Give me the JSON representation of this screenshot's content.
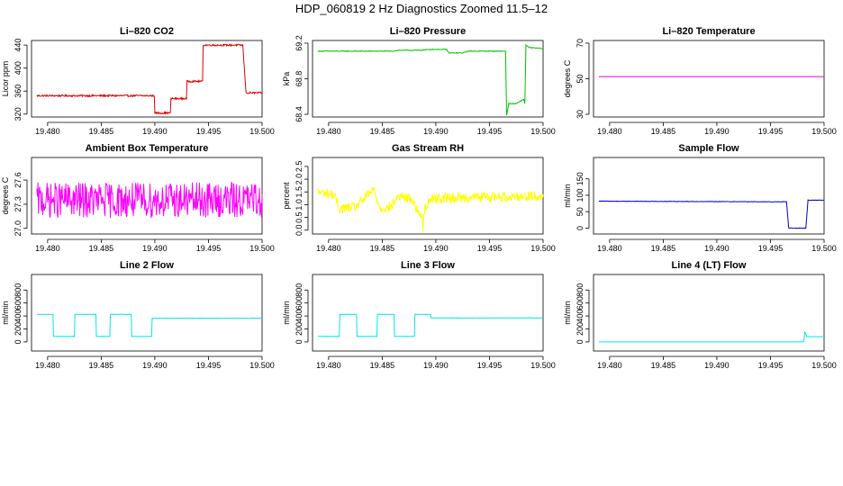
{
  "figure_title": "HDP_060819  2 Hz Diagnostics Zoomed 11.5–12",
  "chart_data": [
    {
      "type": "line",
      "title": "Li–820 CO2",
      "ylabel": "Licor ppm",
      "xlim": [
        19.4785,
        19.5
      ],
      "ylim": [
        315,
        448
      ],
      "xticks": [
        19.48,
        19.485,
        19.49,
        19.495,
        19.5
      ],
      "xtick_labels": [
        "19.480",
        "19.485",
        "19.490",
        "19.495",
        "19.500"
      ],
      "yticks": [
        320,
        360,
        400,
        440
      ],
      "ytick_labels": [
        "320",
        "360",
        "400",
        "440"
      ],
      "color": "#e00000",
      "noise": 1.5,
      "series": [
        {
          "x": [
            19.479,
            19.48999,
            19.49,
            19.49149,
            19.4915,
            19.49299,
            19.493,
            19.49449,
            19.4945,
            19.4965,
            19.49649,
            19.4982,
            19.4985,
            19.5
          ],
          "values": [
            352,
            352,
            322,
            322,
            347,
            347,
            377,
            377,
            440,
            440,
            440,
            440,
            357,
            357
          ]
        }
      ]
    },
    {
      "type": "line",
      "title": "Li–820 Pressure",
      "ylabel": "kPa",
      "xlim": [
        19.4785,
        19.5
      ],
      "ylim": [
        68.37,
        69.23
      ],
      "xticks": [
        19.48,
        19.485,
        19.49,
        19.495,
        19.5
      ],
      "xtick_labels": [
        "19.480",
        "19.485",
        "19.490",
        "19.495",
        "19.500"
      ],
      "yticks": [
        68.4,
        68.8,
        69.2
      ],
      "ytick_labels": [
        "68.4",
        "68.8",
        "69.2"
      ],
      "color": "#00c000",
      "noise": 0.004,
      "series": [
        {
          "x": [
            19.479,
            19.486,
            19.4865,
            19.4885,
            19.4895,
            19.491,
            19.4912,
            19.4925,
            19.493,
            19.4965,
            19.4966,
            19.4968,
            19.4972,
            19.4975,
            19.4982,
            19.4983,
            19.4984,
            19.4987,
            19.5
          ],
          "values": [
            69.11,
            69.11,
            69.12,
            69.12,
            69.13,
            69.13,
            69.09,
            69.09,
            69.11,
            69.11,
            68.39,
            68.52,
            68.52,
            68.52,
            68.57,
            68.52,
            69.18,
            69.15,
            69.14
          ]
        }
      ]
    },
    {
      "type": "line",
      "title": "Li–820 Temperature",
      "ylabel": "degrees C",
      "xlim": [
        19.4785,
        19.5
      ],
      "ylim": [
        28.5,
        71.5
      ],
      "xticks": [
        19.48,
        19.485,
        19.49,
        19.495,
        19.5
      ],
      "xtick_labels": [
        "19.480",
        "19.485",
        "19.490",
        "19.495",
        "19.500"
      ],
      "yticks": [
        30,
        50,
        70
      ],
      "ytick_labels": [
        "30",
        "50",
        "70"
      ],
      "color": "#e000e0",
      "noise": 0,
      "series": [
        {
          "x": [
            19.479,
            19.5
          ],
          "values": [
            51.2,
            51.2
          ]
        }
      ]
    },
    {
      "type": "line",
      "title": "Ambient Box Temperature",
      "ylabel": "degrees C",
      "xlim": [
        19.4785,
        19.5
      ],
      "ylim": [
        26.93,
        27.88
      ],
      "xticks": [
        19.48,
        19.485,
        19.49,
        19.495,
        19.5
      ],
      "xtick_labels": [
        "19.480",
        "19.485",
        "19.490",
        "19.495",
        "19.500"
      ],
      "yticks": [
        27.0,
        27.3,
        27.6
      ],
      "ytick_labels": [
        "27.0",
        "27.3",
        "27.6"
      ],
      "color": "#ff00ff",
      "noise": 0.22,
      "series": [
        {
          "x": [
            19.479,
            19.5
          ],
          "values": [
            27.35,
            27.35
          ]
        }
      ]
    },
    {
      "type": "line",
      "title": "Gas Stream RH",
      "ylabel": "percent",
      "xlim": [
        19.4785,
        19.5
      ],
      "ylim": [
        -0.15,
        2.85
      ],
      "xticks": [
        19.48,
        19.485,
        19.49,
        19.495,
        19.5
      ],
      "xtick_labels": [
        "19.480",
        "19.485",
        "19.490",
        "19.495",
        "19.500"
      ],
      "yticks": [
        0.0,
        0.5,
        1.0,
        1.5,
        2.0,
        2.5
      ],
      "ytick_labels": [
        "0.0",
        "0.5",
        "1.0",
        "1.5",
        "2.0",
        "2.5"
      ],
      "color": "#ffff00",
      "noise": 0.2,
      "series": [
        {
          "x": [
            19.479,
            19.4805,
            19.481,
            19.4825,
            19.483,
            19.4842,
            19.4848,
            19.4858,
            19.4865,
            19.4878,
            19.4882,
            19.4887,
            19.4888,
            19.4889,
            19.4895,
            19.5
          ],
          "values": [
            1.5,
            1.4,
            0.85,
            0.9,
            1.1,
            1.6,
            0.85,
            0.9,
            1.35,
            1.2,
            0.85,
            0.5,
            0.1,
            0.8,
            1.25,
            1.35
          ]
        }
      ]
    },
    {
      "type": "line",
      "title": "Sample Flow",
      "ylabel": "ml/min",
      "xlim": [
        19.4785,
        19.5
      ],
      "ylim": [
        -18,
        215
      ],
      "xticks": [
        19.48,
        19.485,
        19.49,
        19.495,
        19.5
      ],
      "xtick_labels": [
        "19.480",
        "19.485",
        "19.490",
        "19.495",
        "19.500"
      ],
      "yticks": [
        0,
        50,
        100,
        150
      ],
      "ytick_labels": [
        "0",
        "50",
        "100",
        "150"
      ],
      "color": "#0000d0",
      "noise": 0.8,
      "series": [
        {
          "x": [
            19.479,
            19.4965,
            19.4967,
            19.4983,
            19.4985,
            19.5
          ],
          "values": [
            82,
            80,
            0,
            0,
            85,
            85
          ]
        }
      ]
    },
    {
      "type": "line",
      "title": "Line 2 Flow",
      "ylabel": "ml/min",
      "xlim": [
        19.4785,
        19.5
      ],
      "ylim": [
        -140,
        1040
      ],
      "xticks": [
        19.48,
        19.485,
        19.49,
        19.495,
        19.5
      ],
      "xtick_labels": [
        "19.480",
        "19.485",
        "19.490",
        "19.495",
        "19.500"
      ],
      "yticks": [
        0,
        200,
        400,
        600,
        800
      ],
      "ytick_labels": [
        "0",
        "200",
        "400",
        "600",
        "800"
      ],
      "color": "#00e8e8",
      "noise": 3,
      "series": [
        {
          "x": [
            19.479,
            19.4805,
            19.48051,
            19.4825,
            19.48251,
            19.4845,
            19.48451,
            19.4858,
            19.48581,
            19.4878,
            19.48781,
            19.4897,
            19.48971,
            19.5
          ],
          "values": [
            425,
            425,
            85,
            85,
            425,
            425,
            85,
            85,
            425,
            425,
            85,
            85,
            365,
            365
          ]
        }
      ]
    },
    {
      "type": "line",
      "title": "Line 3 Flow",
      "ylabel": "ml/min",
      "xlim": [
        19.4785,
        19.5
      ],
      "ylim": [
        -140,
        1040
      ],
      "xticks": [
        19.48,
        19.485,
        19.49,
        19.495,
        19.5
      ],
      "xtick_labels": [
        "19.480",
        "19.485",
        "19.490",
        "19.495",
        "19.500"
      ],
      "yticks": [
        0,
        200,
        400,
        600,
        800
      ],
      "ytick_labels": [
        "0",
        "200",
        "400",
        "600",
        "800"
      ],
      "color": "#00e8e8",
      "noise": 3,
      "series": [
        {
          "x": [
            19.479,
            19.481,
            19.48101,
            19.4826,
            19.48261,
            19.4845,
            19.48451,
            19.4861,
            19.48611,
            19.488,
            19.48801,
            19.4895,
            19.48951,
            19.5
          ],
          "values": [
            85,
            85,
            425,
            425,
            85,
            85,
            425,
            425,
            85,
            85,
            425,
            425,
            370,
            370
          ]
        }
      ]
    },
    {
      "type": "line",
      "title": "Line 4 (LT) Flow",
      "ylabel": "ml/min",
      "xlim": [
        19.4785,
        19.5
      ],
      "ylim": [
        -140,
        1040
      ],
      "xticks": [
        19.48,
        19.485,
        19.49,
        19.495,
        19.5
      ],
      "xtick_labels": [
        "19.480",
        "19.485",
        "19.490",
        "19.495",
        "19.500"
      ],
      "yticks": [
        0,
        200,
        400,
        600,
        800
      ],
      "ytick_labels": [
        "0",
        "200",
        "400",
        "600",
        "800"
      ],
      "color": "#00e8e8",
      "noise": 0,
      "series": [
        {
          "x": [
            19.479,
            19.4981,
            19.4982,
            19.4984,
            19.5
          ],
          "values": [
            0,
            0,
            150,
            80,
            80
          ]
        }
      ]
    }
  ]
}
